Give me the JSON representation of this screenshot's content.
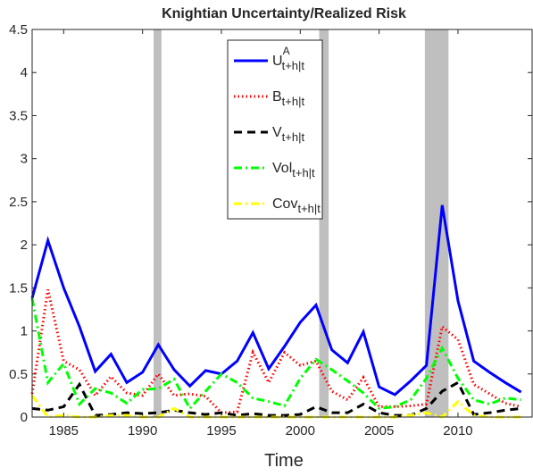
{
  "chart_data": {
    "type": "line",
    "title": "Knightian Uncertainty/Realized Risk",
    "xlabel": "Time",
    "x": [
      1983,
      1984,
      1985,
      1986,
      1987,
      1988,
      1989,
      1990,
      1991,
      1992,
      1993,
      1994,
      1995,
      1996,
      1997,
      1998,
      1999,
      2000,
      2001,
      2002,
      2003,
      2004,
      2005,
      2006,
      2007,
      2008,
      2009,
      2010,
      2011,
      2012,
      2013,
      2014
    ],
    "xlim": [
      1983,
      2014.7
    ],
    "xticks": [
      1985,
      1990,
      1995,
      2000,
      2005,
      2010
    ],
    "ylim": [
      0,
      4.5
    ],
    "yticks": [
      0,
      0.5,
      1,
      1.5,
      2,
      2.5,
      3,
      3.5,
      4,
      4.5
    ],
    "shaded_regions": [
      [
        1990.7,
        1991.2
      ],
      [
        2001.2,
        2001.8
      ],
      [
        2007.9,
        2009.4
      ]
    ],
    "shade_color": "#bfbfbf",
    "series": [
      {
        "name": "U",
        "superscript": "A",
        "subscript": "t+h|t",
        "color": "#0000ff",
        "dash": "solid",
        "values": [
          1.38,
          2.05,
          1.5,
          1.05,
          0.53,
          0.73,
          0.4,
          0.52,
          0.84,
          0.55,
          0.36,
          0.54,
          0.5,
          0.65,
          0.98,
          0.56,
          0.82,
          1.1,
          1.3,
          0.78,
          0.63,
          0.99,
          0.35,
          0.26,
          0.42,
          0.6,
          2.46,
          1.35,
          0.65,
          0.52,
          0.4,
          0.29
        ]
      },
      {
        "name": "B",
        "subscript": "t+h|t",
        "color": "#ff0000",
        "dash": "dot",
        "values": [
          0.27,
          1.48,
          0.65,
          0.55,
          0.25,
          0.47,
          0.28,
          0.25,
          0.5,
          0.25,
          0.27,
          0.24,
          0.05,
          0.06,
          0.75,
          0.4,
          0.75,
          0.6,
          0.65,
          0.3,
          0.2,
          0.46,
          0.12,
          0.12,
          0.13,
          0.15,
          1.05,
          0.9,
          0.38,
          0.27,
          0.16,
          0.12
        ]
      },
      {
        "name": "V",
        "subscript": "t+h|t",
        "color": "#000000",
        "dash": "dash",
        "values": [
          0.1,
          0.08,
          0.12,
          0.38,
          0.02,
          0.03,
          0.05,
          0.04,
          0.05,
          0.08,
          0.05,
          0.03,
          0.05,
          0.02,
          0.04,
          0.02,
          0.02,
          0.03,
          0.12,
          0.05,
          0.05,
          0.15,
          0.05,
          0.02,
          0.02,
          0.1,
          0.3,
          0.4,
          0.03,
          0.05,
          0.08,
          0.1
        ]
      },
      {
        "name": "Vol",
        "subscript": "t+h|t",
        "color": "#00ff00",
        "dash": "dashdot",
        "values": [
          1.38,
          0.4,
          0.62,
          0.15,
          0.33,
          0.28,
          0.16,
          0.32,
          0.33,
          0.44,
          0.1,
          0.3,
          0.5,
          0.4,
          0.22,
          0.18,
          0.13,
          0.45,
          0.67,
          0.55,
          0.42,
          0.28,
          0.1,
          0.12,
          0.2,
          0.45,
          0.8,
          0.45,
          0.2,
          0.15,
          0.22,
          0.2
        ]
      },
      {
        "name": "Cov",
        "subscript": "t+h|t",
        "color": "#ffff00",
        "dash": "dashdot",
        "values": [
          0.25,
          0,
          0.02,
          0,
          0,
          0.02,
          0.02,
          0,
          0,
          0.1,
          0,
          0,
          0,
          0,
          0,
          0,
          0,
          0,
          0,
          0,
          0,
          0,
          0,
          0,
          0.02,
          0.05,
          0,
          0.18,
          0.02,
          0,
          0,
          0
        ]
      }
    ]
  }
}
